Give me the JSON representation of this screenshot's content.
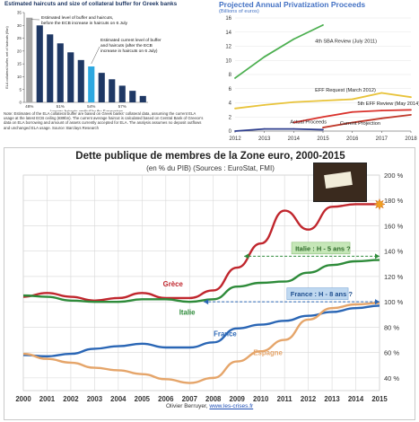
{
  "panels": {
    "top_left": {
      "title": "Estimated haircuts and size of collateral buffer for Greek banks",
      "note": "Note: Estimates of the ELA collateral buffer are based on Greek banks' collateral data, assuming the current ELA usage at the latest ECB ceiling (€89bn). The current average haircut is calculated based on Central Bank of Greece's data on ELA borrowing and amount of assets currently accepted for ELA. The analysis assumes no deposit outflows and unchanged ELA usage. Source: Barclays Research"
    },
    "top_right": {
      "title": "Projected Annual Privatization Proceeds",
      "subtitle": "(Billions of euros)"
    },
    "bottom": {
      "title": "Dette publique de membres de la Zone euro, 2000-2015",
      "subtitle": "(en % du PIB) (Sources : EuroStat, FMI)",
      "credit_author": "Olivier Berruyer, ",
      "credit_link": "www.les-crises.fr"
    }
  },
  "colors": {
    "bar_gray": "#a6a6a6",
    "bar_navy": "#1f3864",
    "bar_highlight": "#2ea8e0",
    "sba4": "#4caf50",
    "eff": "#e8c33a",
    "eff5": "#d9312b",
    "actual": "#2f3f8f",
    "projection": "#c0392b",
    "greece": "#c0262d",
    "italy": "#2e8b3a",
    "france": "#2a66b5",
    "spain": "#e5a56a"
  },
  "chart_data": [
    {
      "type": "bar",
      "ylabel": "ELA collateral buffer, net of haircuts (€bn)",
      "xlabel": "Average haircuts applied by the Eurosystem",
      "categories": [
        "48%",
        "",
        "",
        "51%",
        "",
        "",
        "54%",
        "",
        "",
        "57%",
        "",
        ""
      ],
      "values": [
        33,
        30,
        26.5,
        23,
        19.5,
        16.5,
        14,
        11.5,
        9,
        6.5,
        4.5,
        2.5
      ],
      "highlight_indices": [
        0,
        6
      ],
      "ylim": [
        0,
        35
      ],
      "yticks": [
        0,
        5,
        10,
        15,
        20,
        25,
        30,
        35
      ],
      "annotations": [
        "Estimated level of buffer and haircuts, before the ECB increase in haircuts  on 6 July",
        "Estimated  current level of buffer and haircuts (after the ECB increase in haircuts  on 6 July)"
      ]
    },
    {
      "type": "line",
      "xlim": [
        2012,
        2018
      ],
      "ylim": [
        0,
        16
      ],
      "xticks": [
        2012,
        2013,
        2014,
        2015,
        2016,
        2017,
        2018
      ],
      "yticks": [
        0,
        2,
        4,
        6,
        8,
        10,
        12,
        14,
        16
      ],
      "series": [
        {
          "name": "4th SBA Review (July 2011)",
          "x": [
            2012,
            2013,
            2014,
            2015
          ],
          "values": [
            7.5,
            10.5,
            13,
            15
          ]
        },
        {
          "name": "EFF Request (March 2012)",
          "x": [
            2012,
            2013,
            2014,
            2015,
            2016,
            2017,
            2018
          ],
          "values": [
            3.2,
            3.7,
            4.1,
            4.3,
            4.5,
            5.4,
            4.8
          ]
        },
        {
          "name": "5th EFF Review (May 2014)",
          "x": [
            2014,
            2015,
            2016,
            2017,
            2018
          ],
          "values": [
            1.2,
            2.0,
            2.7,
            2.9,
            3.0
          ]
        },
        {
          "name": "Actual Proceeds",
          "x": [
            2012,
            2013,
            2014,
            2015
          ],
          "values": [
            0,
            0.3,
            0.3,
            0.2
          ]
        },
        {
          "name": "Current Projection",
          "x": [
            2015,
            2016,
            2017,
            2018
          ],
          "values": [
            0.5,
            1.2,
            1.8,
            2.3
          ]
        }
      ]
    },
    {
      "type": "line",
      "xlim": [
        2000,
        2015
      ],
      "ylim": [
        30,
        200
      ],
      "ylabel": "% du PIB",
      "xticks": [
        "2000",
        "2001",
        "2002",
        "2003",
        "2004",
        "2005",
        "2006",
        "2007",
        "2008",
        "2009",
        "2010",
        "2011",
        "2012",
        "2013",
        "2014",
        "2015"
      ],
      "yticks": [
        "40 %",
        "60 %",
        "80 %",
        "100 %",
        "120 %",
        "140 %",
        "160 %",
        "180 %",
        "200 %"
      ],
      "series": [
        {
          "name": "Grèce",
          "x": [
            2000,
            2001,
            2002,
            2003,
            2004,
            2005,
            2006,
            2007,
            2008,
            2009,
            2010,
            2011,
            2012,
            2013,
            2014,
            2015
          ],
          "values": [
            104,
            107,
            104,
            101,
            103,
            107,
            103,
            103,
            109,
            127,
            146,
            172,
            157,
            175,
            177,
            177
          ]
        },
        {
          "name": "Italie",
          "x": [
            2000,
            2001,
            2002,
            2003,
            2004,
            2005,
            2006,
            2007,
            2008,
            2009,
            2010,
            2011,
            2012,
            2013,
            2014,
            2015
          ],
          "values": [
            105,
            104,
            101,
            100,
            100,
            102,
            102,
            100,
            102,
            112,
            115,
            116,
            123,
            129,
            132,
            133
          ]
        },
        {
          "name": "France",
          "x": [
            2000,
            2001,
            2002,
            2003,
            2004,
            2005,
            2006,
            2007,
            2008,
            2009,
            2010,
            2011,
            2012,
            2013,
            2014,
            2015
          ],
          "values": [
            58,
            57,
            59,
            63,
            65,
            67,
            64,
            64,
            68,
            79,
            82,
            85,
            89,
            92,
            95,
            97
          ]
        },
        {
          "name": "Espagne",
          "x": [
            2000,
            2001,
            2002,
            2003,
            2004,
            2005,
            2006,
            2007,
            2008,
            2009,
            2010,
            2011,
            2012,
            2013,
            2014,
            2015
          ],
          "values": [
            59,
            55,
            52,
            48,
            46,
            43,
            39,
            36,
            40,
            53,
            61,
            70,
            86,
            95,
            98,
            99
          ]
        }
      ],
      "annotations": [
        "Italie : H - 5 ans ?",
        "France : H - 8 ans ?"
      ]
    }
  ]
}
